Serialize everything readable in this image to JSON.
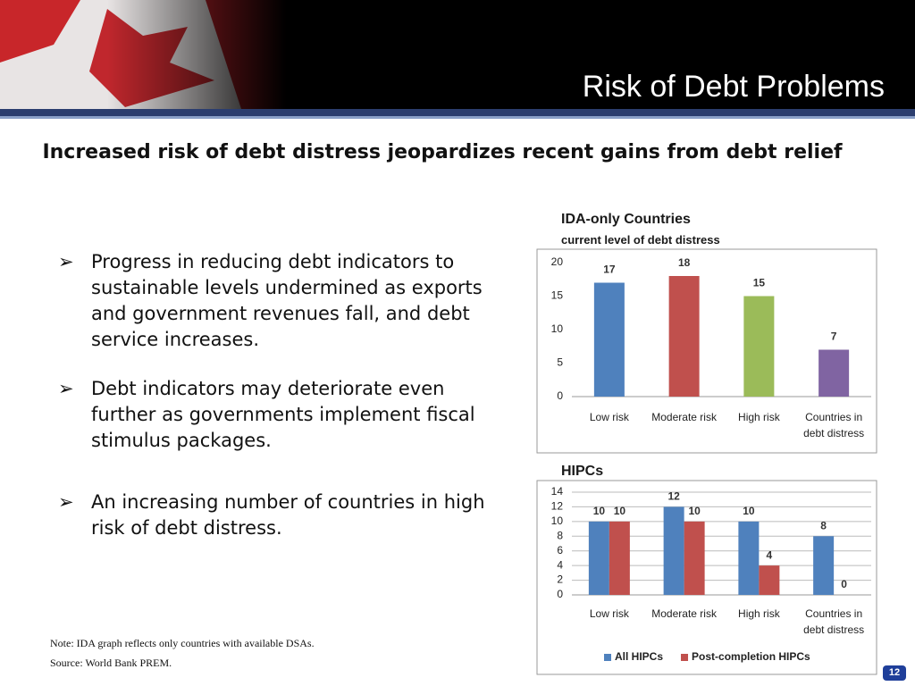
{
  "header": {
    "title": "Risk of Debt Problems"
  },
  "subtitle": "Increased risk of debt distress jeopardizes recent gains from debt relief",
  "bullets": [
    "Progress in reducing debt indicators to sustainable levels undermined as exports and government revenues fall, and debt service increases.",
    "Debt indicators may deteriorate even further as governments implement fiscal stimulus packages.",
    "An increasing number of countries in high risk of debt distress."
  ],
  "notes": [
    "Note: IDA graph reflects only countries with available DSAs.",
    "Source: World Bank PREM."
  ],
  "page_number": 12,
  "chart_data": [
    {
      "type": "bar",
      "title": "IDA-only Countries",
      "subtitle": "current level of debt distress",
      "categories": [
        "Low risk",
        "Moderate risk",
        "High risk",
        "Countries in debt distress"
      ],
      "values": [
        17,
        18,
        15,
        7
      ],
      "colors": [
        "#4f81bd",
        "#c0504d",
        "#9bbb59",
        "#8064a2"
      ],
      "ylim": [
        0,
        20
      ],
      "yticks": [
        0,
        5,
        10,
        15,
        20
      ],
      "grid": false
    },
    {
      "type": "grouped-bar",
      "title": "HIPCs",
      "categories": [
        "Low risk",
        "Moderate risk",
        "High risk",
        "Countries in debt distress"
      ],
      "series": [
        {
          "name": "All HIPCs",
          "color": "#4f81bd",
          "values": [
            10,
            12,
            10,
            8
          ]
        },
        {
          "name": "Post-completion HIPCs",
          "color": "#c0504d",
          "values": [
            10,
            10,
            4,
            0
          ]
        }
      ],
      "ylim": [
        0,
        14
      ],
      "yticks": [
        0,
        2,
        4,
        6,
        8,
        10,
        12,
        14
      ],
      "grid": true,
      "legend": "bottom"
    }
  ]
}
